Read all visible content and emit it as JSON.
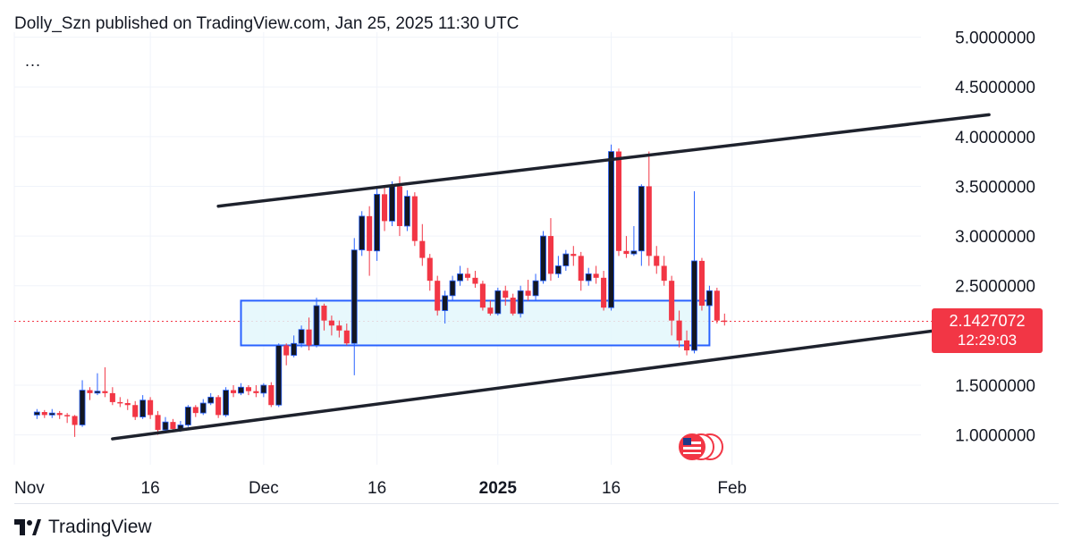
{
  "header": {
    "title": "Dolly_Szn published on TradingView.com, Jan 25, 2025 11:30 UTC",
    "more": "..."
  },
  "footer": {
    "brand": "TradingView"
  },
  "price_tag": {
    "price": "2.1427072",
    "countdown": "12:29:03"
  },
  "colors": {
    "up": "#131722",
    "down": "#f23645",
    "zone_border": "#2962ff",
    "zone_fill": "#e3f7fb",
    "trendline": "#1e222d"
  },
  "chart_data": {
    "type": "candlestick",
    "y_ticks": [
      "5.0000000",
      "4.5000000",
      "4.0000000",
      "3.5000000",
      "3.0000000",
      "2.5000000",
      "1.5000000",
      "1.0000000"
    ],
    "x_ticks": [
      {
        "label": "Nov",
        "day": -3,
        "bold": false
      },
      {
        "label": "16",
        "day": 15,
        "bold": false
      },
      {
        "label": "Dec",
        "day": 30,
        "bold": false
      },
      {
        "label": "16",
        "day": 45,
        "bold": false
      },
      {
        "label": "2025",
        "day": 61,
        "bold": true
      },
      {
        "label": "16",
        "day": 76,
        "bold": false
      },
      {
        "label": "Feb",
        "day": 92,
        "bold": false
      }
    ],
    "ylim": [
      0.7,
      5.05
    ],
    "xlim": [
      -3,
      117
    ],
    "last_price": 2.1427072,
    "candles": [
      [
        1.2,
        1.23,
        1.26,
        1.16
      ],
      [
        1.23,
        1.2,
        1.25,
        1.17
      ],
      [
        1.2,
        1.22,
        1.26,
        1.17
      ],
      [
        1.22,
        1.2,
        1.24,
        1.16
      ],
      [
        1.2,
        1.19,
        1.22,
        1.12
      ],
      [
        1.19,
        1.1,
        1.2,
        0.98
      ],
      [
        1.1,
        1.45,
        1.55,
        1.08
      ],
      [
        1.45,
        1.42,
        1.48,
        1.35
      ],
      [
        1.42,
        1.44,
        1.62,
        1.4
      ],
      [
        1.44,
        1.42,
        1.68,
        1.38
      ],
      [
        1.42,
        1.33,
        1.48,
        1.3
      ],
      [
        1.33,
        1.32,
        1.38,
        1.28
      ],
      [
        1.32,
        1.3,
        1.36,
        1.25
      ],
      [
        1.3,
        1.18,
        1.34,
        1.15
      ],
      [
        1.18,
        1.35,
        1.4,
        1.16
      ],
      [
        1.35,
        1.2,
        1.38,
        1.16
      ],
      [
        1.2,
        1.05,
        1.24,
        1.0
      ],
      [
        1.05,
        1.13,
        1.18,
        1.02
      ],
      [
        1.13,
        1.06,
        1.16,
        1.03
      ],
      [
        1.06,
        1.1,
        1.14,
        1.03
      ],
      [
        1.1,
        1.28,
        1.3,
        1.08
      ],
      [
        1.28,
        1.22,
        1.3,
        1.18
      ],
      [
        1.22,
        1.32,
        1.36,
        1.2
      ],
      [
        1.32,
        1.38,
        1.42,
        1.3
      ],
      [
        1.38,
        1.2,
        1.4,
        1.17
      ],
      [
        1.2,
        1.45,
        1.48,
        1.18
      ],
      [
        1.45,
        1.42,
        1.5,
        1.38
      ],
      [
        1.42,
        1.48,
        1.52,
        1.4
      ],
      [
        1.48,
        1.44,
        1.5,
        1.4
      ],
      [
        1.44,
        1.42,
        1.5,
        1.38
      ],
      [
        1.42,
        1.5,
        1.52,
        1.38
      ],
      [
        1.5,
        1.3,
        1.53,
        1.28
      ],
      [
        1.3,
        1.9,
        1.92,
        1.28
      ],
      [
        1.9,
        1.8,
        1.92,
        1.7
      ],
      [
        1.8,
        1.92,
        2.0,
        1.78
      ],
      [
        1.92,
        2.06,
        2.1,
        1.88
      ],
      [
        2.06,
        1.9,
        2.18,
        1.85
      ],
      [
        1.9,
        2.3,
        2.38,
        1.88
      ],
      [
        2.3,
        2.15,
        2.32,
        2.05
      ],
      [
        2.15,
        2.1,
        2.2,
        2.0
      ],
      [
        2.1,
        2.05,
        2.15,
        1.98
      ],
      [
        2.05,
        1.92,
        2.12,
        1.9
      ],
      [
        1.92,
        2.86,
        2.98,
        1.6
      ],
      [
        2.86,
        3.2,
        3.25,
        2.8
      ],
      [
        3.2,
        2.85,
        3.3,
        2.6
      ],
      [
        2.85,
        3.42,
        3.48,
        2.75
      ],
      [
        3.42,
        3.15,
        3.5,
        3.05
      ],
      [
        3.15,
        3.5,
        3.55,
        3.1
      ],
      [
        3.5,
        3.1,
        3.6,
        3.0
      ],
      [
        3.1,
        3.4,
        3.46,
        3.05
      ],
      [
        3.4,
        2.95,
        3.44,
        2.9
      ],
      [
        2.95,
        2.78,
        3.12,
        2.7
      ],
      [
        2.78,
        2.55,
        2.82,
        2.45
      ],
      [
        2.55,
        2.25,
        2.6,
        2.2
      ],
      [
        2.25,
        2.4,
        2.45,
        2.12
      ],
      [
        2.4,
        2.55,
        2.6,
        2.35
      ],
      [
        2.55,
        2.62,
        2.7,
        2.5
      ],
      [
        2.62,
        2.58,
        2.68,
        2.55
      ],
      [
        2.58,
        2.52,
        2.65,
        2.48
      ],
      [
        2.52,
        2.28,
        2.55,
        2.25
      ],
      [
        2.28,
        2.22,
        2.35,
        2.2
      ],
      [
        2.22,
        2.45,
        2.48,
        2.2
      ],
      [
        2.45,
        2.38,
        2.5,
        2.3
      ],
      [
        2.38,
        2.22,
        2.42,
        2.2
      ],
      [
        2.22,
        2.45,
        2.5,
        2.18
      ],
      [
        2.45,
        2.4,
        2.56,
        2.35
      ],
      [
        2.4,
        2.55,
        2.62,
        2.35
      ],
      [
        2.55,
        3.0,
        3.05,
        2.52
      ],
      [
        3.0,
        2.62,
        3.18,
        2.55
      ],
      [
        2.62,
        2.7,
        2.8,
        2.58
      ],
      [
        2.7,
        2.82,
        2.86,
        2.65
      ],
      [
        2.82,
        2.8,
        2.9,
        2.7
      ],
      [
        2.8,
        2.55,
        2.84,
        2.45
      ],
      [
        2.55,
        2.62,
        2.68,
        2.5
      ],
      [
        2.62,
        2.58,
        2.7,
        2.52
      ],
      [
        2.58,
        2.28,
        2.65,
        2.25
      ],
      [
        2.28,
        3.85,
        3.92,
        2.25
      ],
      [
        3.85,
        2.85,
        3.88,
        2.8
      ],
      [
        2.85,
        2.82,
        3.0,
        2.78
      ],
      [
        2.82,
        2.85,
        3.1,
        2.8
      ],
      [
        2.85,
        3.5,
        3.52,
        2.7
      ],
      [
        3.5,
        2.8,
        3.85,
        2.7
      ],
      [
        2.8,
        2.7,
        2.9,
        2.62
      ],
      [
        2.7,
        2.55,
        2.8,
        2.5
      ],
      [
        2.55,
        2.15,
        2.6,
        2.0
      ],
      [
        2.15,
        1.95,
        2.25,
        1.88
      ],
      [
        1.95,
        1.85,
        2.05,
        1.8
      ],
      [
        1.85,
        2.75,
        3.45,
        1.82
      ],
      [
        2.75,
        2.3,
        2.78,
        2.25
      ],
      [
        2.3,
        2.45,
        2.5,
        2.28
      ],
      [
        2.45,
        2.15,
        2.48,
        2.12
      ],
      [
        2.15,
        2.14,
        2.22,
        2.1
      ]
    ],
    "trendlines": [
      {
        "from": [
          24,
          3.3
        ],
        "to": [
          126,
          4.22
        ]
      },
      {
        "from": [
          10,
          0.96
        ],
        "to": [
          126,
          2.12
        ]
      }
    ],
    "zone": {
      "x_from": 27,
      "x_to": 89,
      "y_from": 1.9,
      "y_to": 2.35
    }
  }
}
